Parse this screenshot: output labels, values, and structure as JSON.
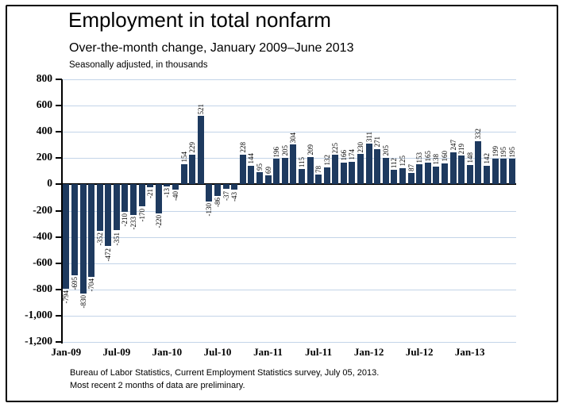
{
  "header": {
    "title": "Employment in total nonfarm",
    "subtitle": "Over-the-month change, January 2009–June 2013",
    "note": "Seasonally adjusted, in thousands"
  },
  "footnote": {
    "line1": "Bureau of Labor Statistics, Current Employment Statistics survey, July 05, 2013.",
    "line2": "Most recent 2 months of data are preliminary."
  },
  "chart_data": {
    "type": "bar",
    "title": "Employment in total nonfarm",
    "subtitle": "Over-the-month change, January 2009–June 2013",
    "units_note": "Seasonally adjusted, in thousands",
    "xlabel": "",
    "ylabel": "",
    "ylim": [
      -1200,
      800
    ],
    "ytick_step": 200,
    "ytick_labels": [
      "800",
      "600",
      "400",
      "200",
      "0",
      "-200",
      "-400",
      "-600",
      "-800",
      "-1,000",
      "-1,200"
    ],
    "grid": true,
    "legend": false,
    "value_label_style": "rotated-90-at-bar-ends",
    "bar_color": "#1e3a5f",
    "gridline_color": "#c3d4e8",
    "axis_color": "#000000",
    "categories": [
      "Jan-09",
      "Feb-09",
      "Mar-09",
      "Apr-09",
      "May-09",
      "Jun-09",
      "Jul-09",
      "Aug-09",
      "Sep-09",
      "Oct-09",
      "Nov-09",
      "Dec-09",
      "Jan-10",
      "Feb-10",
      "Mar-10",
      "Apr-10",
      "May-10",
      "Jun-10",
      "Jul-10",
      "Aug-10",
      "Sep-10",
      "Oct-10",
      "Nov-10",
      "Dec-10",
      "Jan-11",
      "Feb-11",
      "Mar-11",
      "Apr-11",
      "May-11",
      "Jun-11",
      "Jul-11",
      "Aug-11",
      "Sep-11",
      "Oct-11",
      "Nov-11",
      "Dec-11",
      "Jan-12",
      "Feb-12",
      "Mar-12",
      "Apr-12",
      "May-12",
      "Jun-12",
      "Jul-12",
      "Aug-12",
      "Sep-12",
      "Oct-12",
      "Nov-12",
      "Dec-12",
      "Jan-13",
      "Feb-13",
      "Mar-13",
      "Apr-13",
      "May-13",
      "Jun-13"
    ],
    "values": [
      -794,
      -695,
      -830,
      -704,
      -352,
      -472,
      -351,
      -210,
      -233,
      -170,
      -21,
      -220,
      -13,
      -40,
      154,
      229,
      521,
      -130,
      -86,
      -37,
      -43,
      228,
      144,
      95,
      69,
      196,
      205,
      304,
      115,
      209,
      78,
      132,
      225,
      166,
      174,
      230,
      311,
      271,
      205,
      112,
      125,
      87,
      153,
      165,
      138,
      160,
      247,
      219,
      148,
      332,
      142,
      199,
      195,
      195
    ],
    "xtick_indices": [
      0,
      6,
      12,
      18,
      24,
      30,
      36,
      42,
      48
    ],
    "xtick_labels": [
      "Jan-09",
      "Jul-09",
      "Jan-10",
      "Jul-10",
      "Jan-11",
      "Jul-11",
      "Jan-12",
      "Jul-12",
      "Jan-13"
    ]
  }
}
